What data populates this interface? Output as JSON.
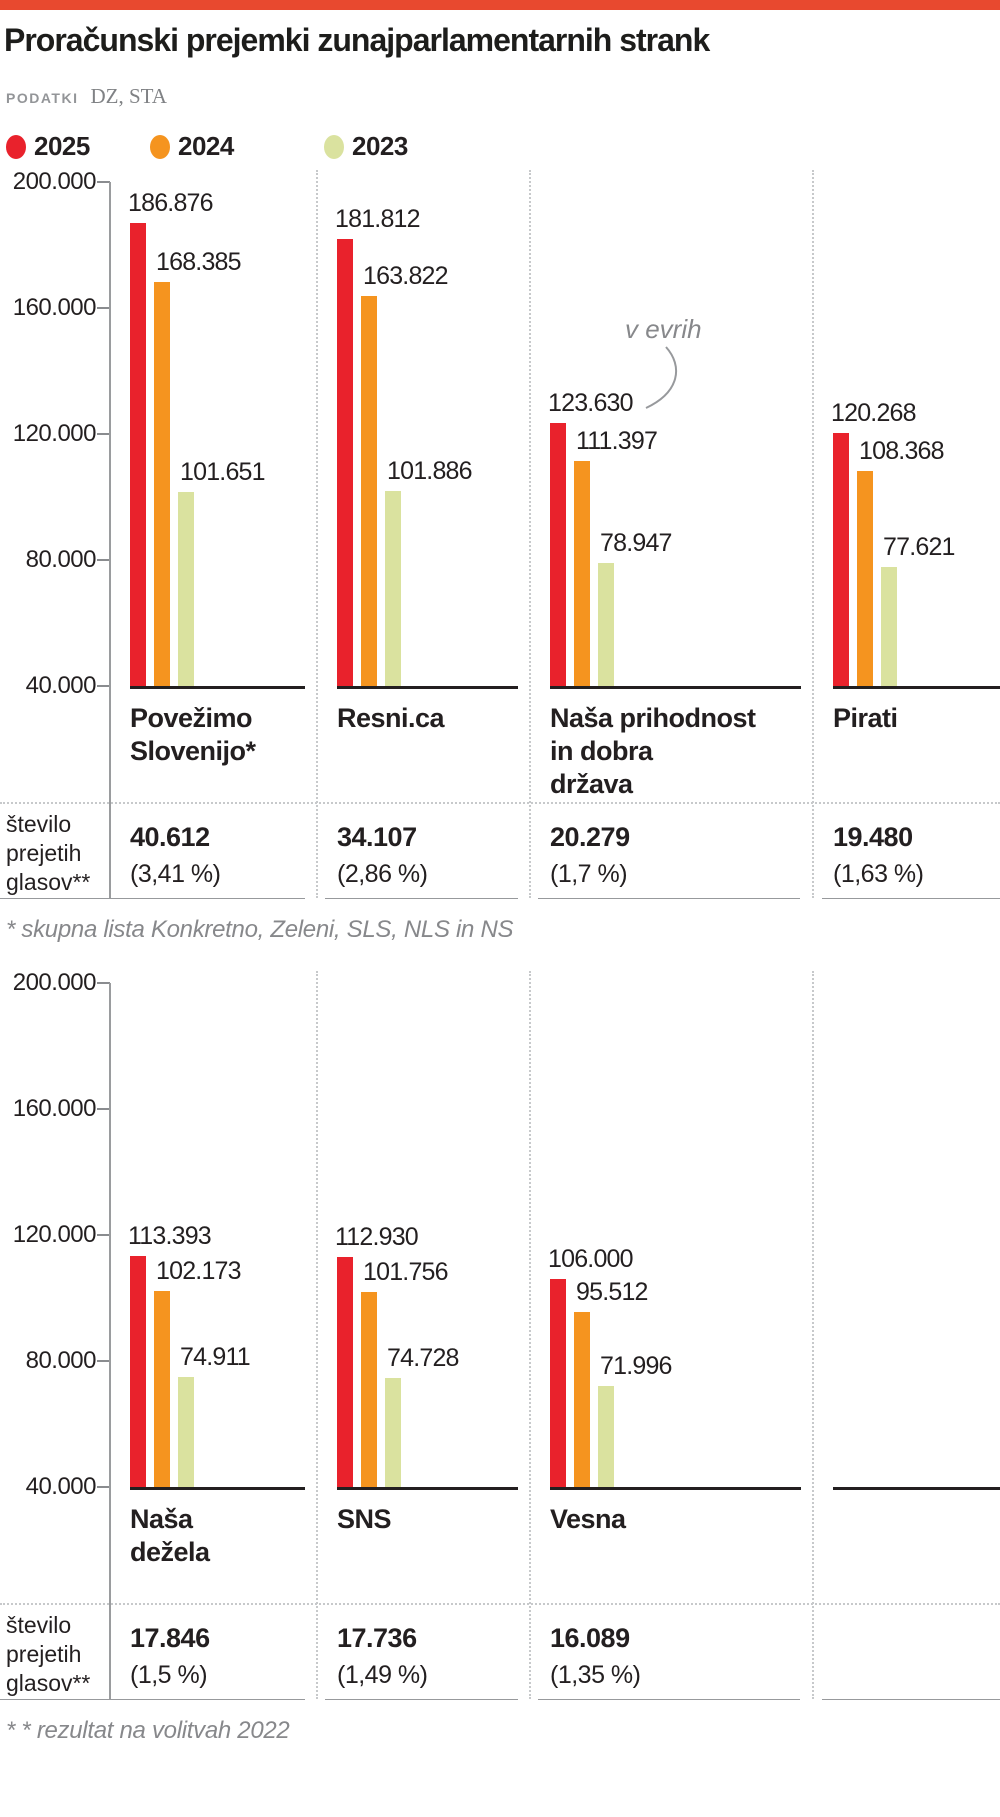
{
  "header": {
    "title": "Proračunski prejemki zunajparlamentarnih strank",
    "source_label": "PODATKI",
    "source_value": "DZ, STA"
  },
  "legend": [
    {
      "label": "2025",
      "color": "#e9222c"
    },
    {
      "label": "2024",
      "color": "#f5941f"
    },
    {
      "label": "2023",
      "color": "#dae29f"
    }
  ],
  "accent_bar_color": "#e8492f",
  "axis": {
    "tick_labels": [
      "200.000",
      "160.000",
      "120.000",
      "80.000",
      "40.000"
    ],
    "ylim": [
      40000,
      200000
    ]
  },
  "votes_row_label": "število prejetih glasov**",
  "chart_data": [
    {
      "type": "bar",
      "annotation": "v evrih",
      "ylim": [
        40000,
        200000
      ],
      "legend_position": "top",
      "categories": [
        {
          "name": "Povežimo Slovenijo*",
          "lines": [
            "Povežimo",
            "Slovenijo*"
          ]
        },
        {
          "name": "Resni.ca",
          "lines": [
            "Resni.ca"
          ]
        },
        {
          "name": "Naša prihodnost in dobra država",
          "lines": [
            "Naša prihodnost",
            "in dobra",
            "država"
          ]
        },
        {
          "name": "Pirati",
          "lines": [
            "Pirati"
          ]
        }
      ],
      "series": [
        {
          "name": "2025",
          "values": [
            186876,
            181812,
            123630,
            120268
          ],
          "labels": [
            "186.876",
            "181.812",
            "123.630",
            "120.268"
          ]
        },
        {
          "name": "2024",
          "values": [
            168385,
            163822,
            111397,
            108368
          ],
          "labels": [
            "168.385",
            "163.822",
            "111.397",
            "108.368"
          ]
        },
        {
          "name": "2023",
          "values": [
            101651,
            101886,
            78947,
            77621
          ],
          "labels": [
            "101.651",
            "101.886",
            "78.947",
            "77.621"
          ]
        }
      ],
      "votes": [
        {
          "count": "40.612",
          "pct": "(3,41 %)"
        },
        {
          "count": "34.107",
          "pct": "(2,86 %)"
        },
        {
          "count": "20.279",
          "pct": "(1,7 %)"
        },
        {
          "count": "19.480",
          "pct": "(1,63 %)"
        }
      ],
      "footnote": "* skupna lista Konkretno, Zeleni, SLS, NLS in NS"
    },
    {
      "type": "bar",
      "ylim": [
        40000,
        200000
      ],
      "categories": [
        {
          "name": "Naša dežela",
          "lines": [
            "Naša",
            "dežela"
          ]
        },
        {
          "name": "SNS",
          "lines": [
            "SNS"
          ]
        },
        {
          "name": "Vesna",
          "lines": [
            "Vesna"
          ]
        }
      ],
      "series": [
        {
          "name": "2025",
          "values": [
            113393,
            112930,
            106000
          ],
          "labels": [
            "113.393",
            "112.930",
            "106.000"
          ]
        },
        {
          "name": "2024",
          "values": [
            102173,
            101756,
            95512
          ],
          "labels": [
            "102.173",
            "101.756",
            "95.512"
          ]
        },
        {
          "name": "2023",
          "values": [
            74911,
            74728,
            71996
          ],
          "labels": [
            "74.911",
            "74.728",
            "71.996"
          ]
        }
      ],
      "votes": [
        {
          "count": "17.846",
          "pct": "(1,5 %)"
        },
        {
          "count": "17.736",
          "pct": "(1,49 %)"
        },
        {
          "count": "16.089",
          "pct": "(1,35 %)"
        }
      ],
      "footnote": "* * rezultat na volitvah 2022"
    }
  ]
}
